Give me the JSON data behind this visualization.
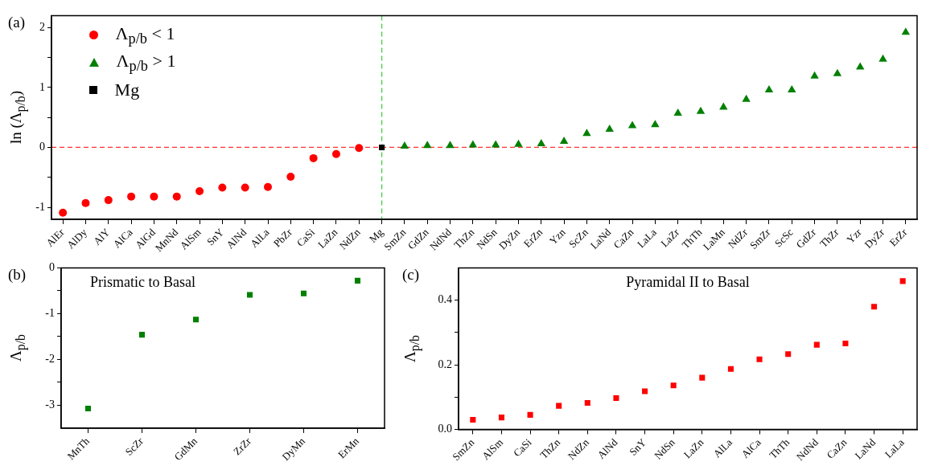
{
  "chart_data": [
    {
      "type": "scatter",
      "ylabel": "ln (Λ$_{p/b}$)",
      "annotations": [
        "(a)"
      ],
      "categories": [
        "AlEr",
        "AlDy",
        "AlY",
        "AlCa",
        "AlGd",
        "MnNd",
        "AlSm",
        "SnY",
        "AlNd",
        "AlLa",
        "PbZr",
        "CaSi",
        "LaZn",
        "NdZn",
        "Mg",
        "SmZn",
        "GdZn",
        "NdNd",
        "ThZn",
        "NdSn",
        "DyZn",
        "ErZn",
        "Yzn",
        "ScZn",
        "LaNd",
        "CaZn",
        "LaLa",
        "LaZr",
        "ThTh",
        "LaMn",
        "NdZr",
        "SmZr",
        "ScSc",
        "GdZr",
        "ThZr",
        "Yzr",
        "DyZr",
        "ErZr"
      ],
      "series": [
        {
          "name": "Λ$_{p/b}$ < 1",
          "color": "#ff0000",
          "marker": "circle",
          "values": [
            -1.09,
            -0.93,
            -0.88,
            -0.82,
            -0.82,
            -0.82,
            -0.73,
            -0.67,
            -0.67,
            -0.66,
            -0.49,
            -0.18,
            -0.11,
            -0.01,
            null,
            null,
            null,
            null,
            null,
            null,
            null,
            null,
            null,
            null,
            null,
            null,
            null,
            null,
            null,
            null,
            null,
            null,
            null,
            null,
            null,
            null,
            null,
            null
          ]
        },
        {
          "name": "Λ$_{p/b}$ > 1",
          "color": "#008000",
          "marker": "triangle",
          "values": [
            null,
            null,
            null,
            null,
            null,
            null,
            null,
            null,
            null,
            null,
            null,
            null,
            null,
            null,
            null,
            0.02,
            0.03,
            0.03,
            0.04,
            0.04,
            0.05,
            0.06,
            0.1,
            0.23,
            0.3,
            0.36,
            0.38,
            0.57,
            0.6,
            0.67,
            0.8,
            0.96,
            0.96,
            1.19,
            1.23,
            1.34,
            1.47,
            1.92
          ]
        },
        {
          "name": "Mg",
          "color": "#000000",
          "marker": "square",
          "values": [
            null,
            null,
            null,
            null,
            null,
            null,
            null,
            null,
            null,
            null,
            null,
            null,
            null,
            null,
            0,
            null,
            null,
            null,
            null,
            null,
            null,
            null,
            null,
            null,
            null,
            null,
            null,
            null,
            null,
            null,
            null,
            null,
            null,
            null,
            null,
            null,
            null,
            null
          ]
        }
      ],
      "ylim": [
        -1.2,
        2.2
      ],
      "yticks": [
        -1,
        {
          "value": -0.5,
          "label": null
        },
        0,
        {
          "value": 0.5,
          "label": null
        },
        1,
        {
          "value": 1.5,
          "label": null
        },
        2
      ],
      "ref_lines": [
        {
          "axis": "y",
          "value": 0,
          "color": "#ff3333",
          "line_style": "dashed"
        },
        {
          "axis": "x",
          "value": "Mg",
          "color": "#33cc33",
          "line_style": "dashed"
        }
      ],
      "legend": "top left",
      "grid": false
    },
    {
      "type": "scatter",
      "ylabel": "Λ$_{p/b}$",
      "annotations": [
        "(b)",
        "Prismatic to Basal"
      ],
      "categories": [
        "MnTh",
        "ScZr",
        "GdMn",
        "ZrZr",
        "DyMn",
        "ErMn"
      ],
      "series": [
        {
          "color": "#008000",
          "values": [
            -3.07,
            -1.46,
            -1.13,
            -0.59,
            -0.56,
            -0.28
          ]
        }
      ],
      "marker": "square",
      "ylim": [
        -3.5,
        0
      ],
      "yticks": [
        -3,
        {
          "value": -2.5,
          "label": null
        },
        -2,
        {
          "value": -1.5,
          "label": null
        },
        -1,
        {
          "value": -0.5,
          "label": null
        },
        0
      ],
      "grid": false,
      "legend": false
    },
    {
      "type": "scatter",
      "ylabel": "Λ$_{p/b}$",
      "annotations": [
        "(c)",
        "Pyramidal II to Basal"
      ],
      "categories": [
        "SmZn",
        "AlSm",
        "CaSi",
        "ThZn",
        "NdZn",
        "AlNd",
        "SnY",
        "NdSn",
        "LaZn",
        "AlLa",
        "AlCa",
        "ThTh",
        "NdNd",
        "CaZn",
        "LaNd",
        "LaLa"
      ],
      "series": [
        {
          "color": "#ff0000",
          "values": [
            0.03,
            0.037,
            0.045,
            0.073,
            0.082,
            0.097,
            0.118,
            0.136,
            0.16,
            0.187,
            0.217,
            0.233,
            0.262,
            0.266,
            0.38,
            0.459
          ]
        }
      ],
      "marker": "square",
      "ylim": [
        0,
        0.5
      ],
      "yticks": [
        {
          "value": 0,
          "label": "0.0"
        },
        {
          "value": 0.1,
          "label": null
        },
        {
          "value": 0.2,
          "label": "0.2"
        },
        {
          "value": 0.3,
          "label": null
        },
        {
          "value": 0.4,
          "label": "0.4"
        }
      ],
      "grid": false,
      "legend": false
    }
  ]
}
